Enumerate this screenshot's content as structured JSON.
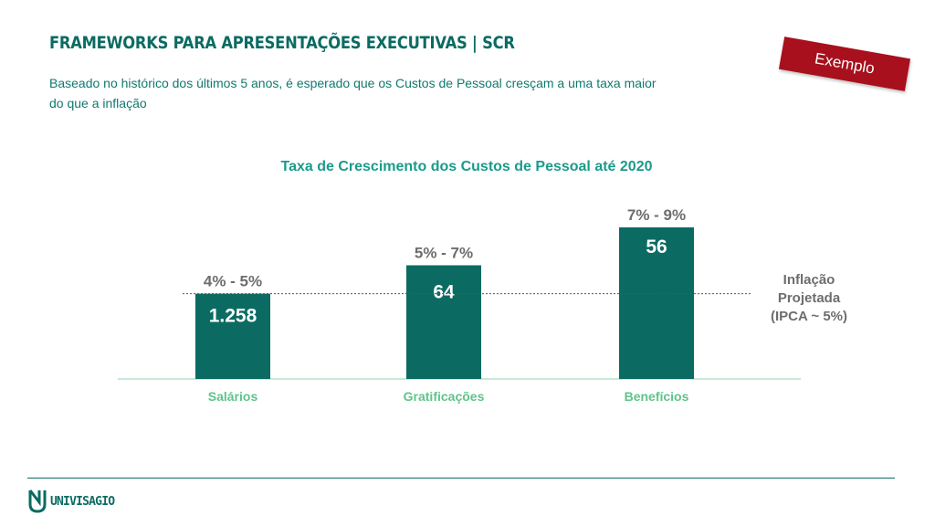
{
  "header": {
    "title": "FRAMEWORKS PARA APRESENTAÇÕES EXECUTIVAS | SCR",
    "subtitle": "Baseado no histórico dos últimos 5 anos, é esperado que os Custos de Pessoal cresçam a uma taxa maior do que a inflação",
    "badge": "Exemplo"
  },
  "chart_data": {
    "type": "bar",
    "title": "Taxa de Crescimento dos Custos de Pessoal até 2020",
    "categories": [
      "Salários",
      "Gratificações",
      "Benefícios"
    ],
    "bars": [
      {
        "category": "Salários",
        "range_label": "4% - 5%",
        "value_label": "1.258",
        "growth_midpoint": 4.5
      },
      {
        "category": "Gratificações",
        "range_label": "5% - 7%",
        "value_label": "64",
        "growth_midpoint": 6.0
      },
      {
        "category": "Benefícios",
        "range_label": "7% - 9%",
        "value_label": "56",
        "growth_midpoint": 8.0
      }
    ],
    "reference_line": {
      "value": 4.5,
      "label_lines": [
        "Inflação",
        "Projetada",
        "(IPCA ~ 5%)"
      ],
      "style": "dashed"
    },
    "ylim": [
      0,
      8
    ],
    "colors": {
      "bar": "#0b6b62",
      "category_text": "#5ec48a",
      "axis": "#8fd3ae",
      "reference_line": "#555555"
    }
  },
  "footer": {
    "logo_text": "UNIVISAGIO"
  },
  "colors": {
    "brand": "#0b6b62",
    "badge": "#a7101c"
  }
}
